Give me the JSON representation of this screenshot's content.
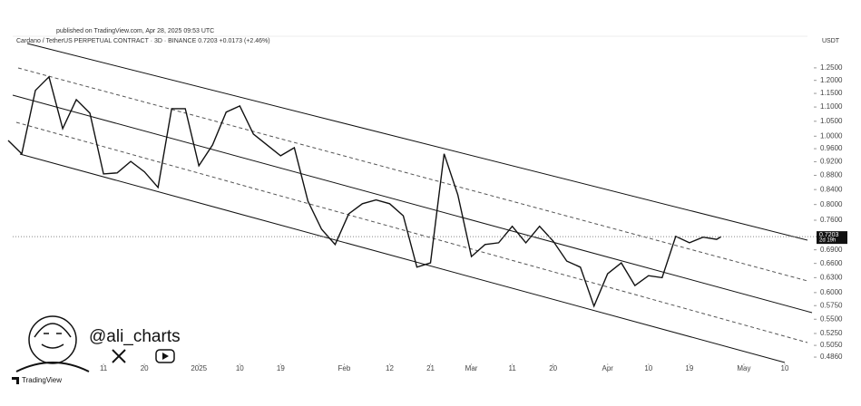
{
  "chart_data": {
    "type": "line",
    "published": "published on TradingView.com, Apr 28, 2025 09:53 UTC",
    "title": "Cardano / TetherUS PERPETUAL CONTRACT · 3D · BINANCE  0.7203  +0.0173 (+2.46%)",
    "currency": "USDT",
    "price_label": "0.7203",
    "countdown": "2d 19h",
    "author": "@ali_charts",
    "brand": "TradingView",
    "log_scale": true,
    "color": "#111111",
    "x": [
      -21,
      -18,
      -15,
      -12,
      -9,
      -6,
      -3,
      0,
      3,
      6,
      9,
      12,
      15,
      18,
      21,
      24,
      27,
      30,
      33,
      36,
      39,
      42,
      45,
      48,
      51,
      54,
      57,
      60,
      63,
      66,
      69,
      72,
      75,
      78,
      81,
      84,
      87,
      90,
      93,
      96,
      99,
      102,
      105,
      108,
      111,
      114,
      117,
      120,
      123,
      126,
      129,
      132,
      135,
      136
    ],
    "values": [
      0.986,
      0.944,
      1.161,
      1.214,
      1.025,
      1.127,
      1.078,
      0.884,
      0.887,
      0.921,
      0.89,
      0.846,
      1.094,
      1.094,
      0.908,
      0.972,
      1.082,
      1.104,
      1.007,
      0.972,
      0.938,
      0.963,
      0.809,
      0.738,
      0.702,
      0.776,
      0.802,
      0.812,
      0.802,
      0.771,
      0.652,
      0.661,
      0.944,
      0.826,
      0.675,
      0.702,
      0.706,
      0.745,
      0.706,
      0.745,
      0.71,
      0.665,
      0.652,
      0.574,
      0.638,
      0.661,
      0.614,
      0.634,
      0.63,
      0.721,
      0.706,
      0.719,
      0.714,
      0.7203
    ],
    "xlim": [
      -20,
      155
    ],
    "xticks": [
      {
        "value": 0,
        "label": "11"
      },
      {
        "value": 9,
        "label": "20"
      },
      {
        "value": 21,
        "label": "2025"
      },
      {
        "value": 30,
        "label": "10"
      },
      {
        "value": 39,
        "label": "19"
      },
      {
        "value": 53,
        "label": "Feb"
      },
      {
        "value": 63,
        "label": "12"
      },
      {
        "value": 72,
        "label": "21"
      },
      {
        "value": 81,
        "label": "Mar"
      },
      {
        "value": 90,
        "label": "11"
      },
      {
        "value": 99,
        "label": "20"
      },
      {
        "value": 111,
        "label": "Apr"
      },
      {
        "value": 120,
        "label": "10"
      },
      {
        "value": 129,
        "label": "19"
      },
      {
        "value": 141,
        "label": "May"
      },
      {
        "value": 150,
        "label": "10"
      }
    ],
    "ylim": [
      0.4705,
      1.386
    ],
    "yticks": [
      {
        "value": 1.25,
        "label": "1.2500"
      },
      {
        "value": 1.2,
        "label": "1.2000"
      },
      {
        "value": 1.15,
        "label": "1.1500"
      },
      {
        "value": 1.1,
        "label": "1.1000"
      },
      {
        "value": 1.05,
        "label": "1.0500"
      },
      {
        "value": 1,
        "label": "1.0000"
      },
      {
        "value": 0.96,
        "label": "0.9600"
      },
      {
        "value": 0.92,
        "label": "0.9200"
      },
      {
        "value": 0.88,
        "label": "0.8800"
      },
      {
        "value": 0.84,
        "label": "0.8400"
      },
      {
        "value": 0.8,
        "label": "0.8000"
      },
      {
        "value": 0.76,
        "label": "0.7600"
      },
      {
        "value": 0.69,
        "label": "0.6900"
      },
      {
        "value": 0.66,
        "label": "0.6600"
      },
      {
        "value": 0.63,
        "label": "0.6300"
      },
      {
        "value": 0.6,
        "label": "0.6000"
      },
      {
        "value": 0.575,
        "label": "0.5750"
      },
      {
        "value": 0.55,
        "label": "0.5500"
      },
      {
        "value": 0.525,
        "label": "0.5250"
      },
      {
        "value": 0.505,
        "label": "0.5050"
      },
      {
        "value": 0.486,
        "label": "0.4860"
      }
    ]
  }
}
